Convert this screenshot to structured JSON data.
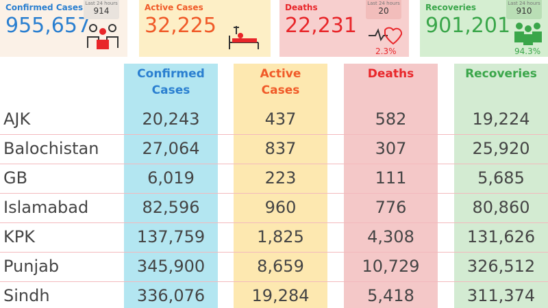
{
  "cards": [
    {
      "label": "Confirmed Cases",
      "value": "955,657",
      "last24_label": "Last 24 hours",
      "last24": "914"
    },
    {
      "label": "Active Cases",
      "value": "32,225"
    },
    {
      "label": "Deaths",
      "value": "22,231",
      "last24_label": "Last 24 hours",
      "last24": "20",
      "rate": "2.3%"
    },
    {
      "label": "Recoveries",
      "value": "901,201",
      "last24_label": "Last 24 hours",
      "last24": "910",
      "rate": "94.3%"
    }
  ],
  "table": {
    "columns": [
      "Confirmed Cases",
      "Active Cases",
      "Deaths",
      "Recoveries"
    ],
    "rows": [
      [
        "AJK",
        "20,243",
        "437",
        "582",
        "19,224"
      ],
      [
        "Balochistan",
        "27,064",
        "837",
        "307",
        "25,920"
      ],
      [
        "GB",
        "6,019",
        "223",
        "111",
        "5,685"
      ],
      [
        "Islamabad",
        "82,596",
        "960",
        "776",
        "80,860"
      ],
      [
        "KPK",
        "137,759",
        "1,825",
        "4,308",
        "131,626"
      ],
      [
        "Punjab",
        "345,900",
        "8,659",
        "10,729",
        "326,512"
      ],
      [
        "Sindh",
        "336,076",
        "19,284",
        "5,418",
        "311,374"
      ]
    ]
  }
}
